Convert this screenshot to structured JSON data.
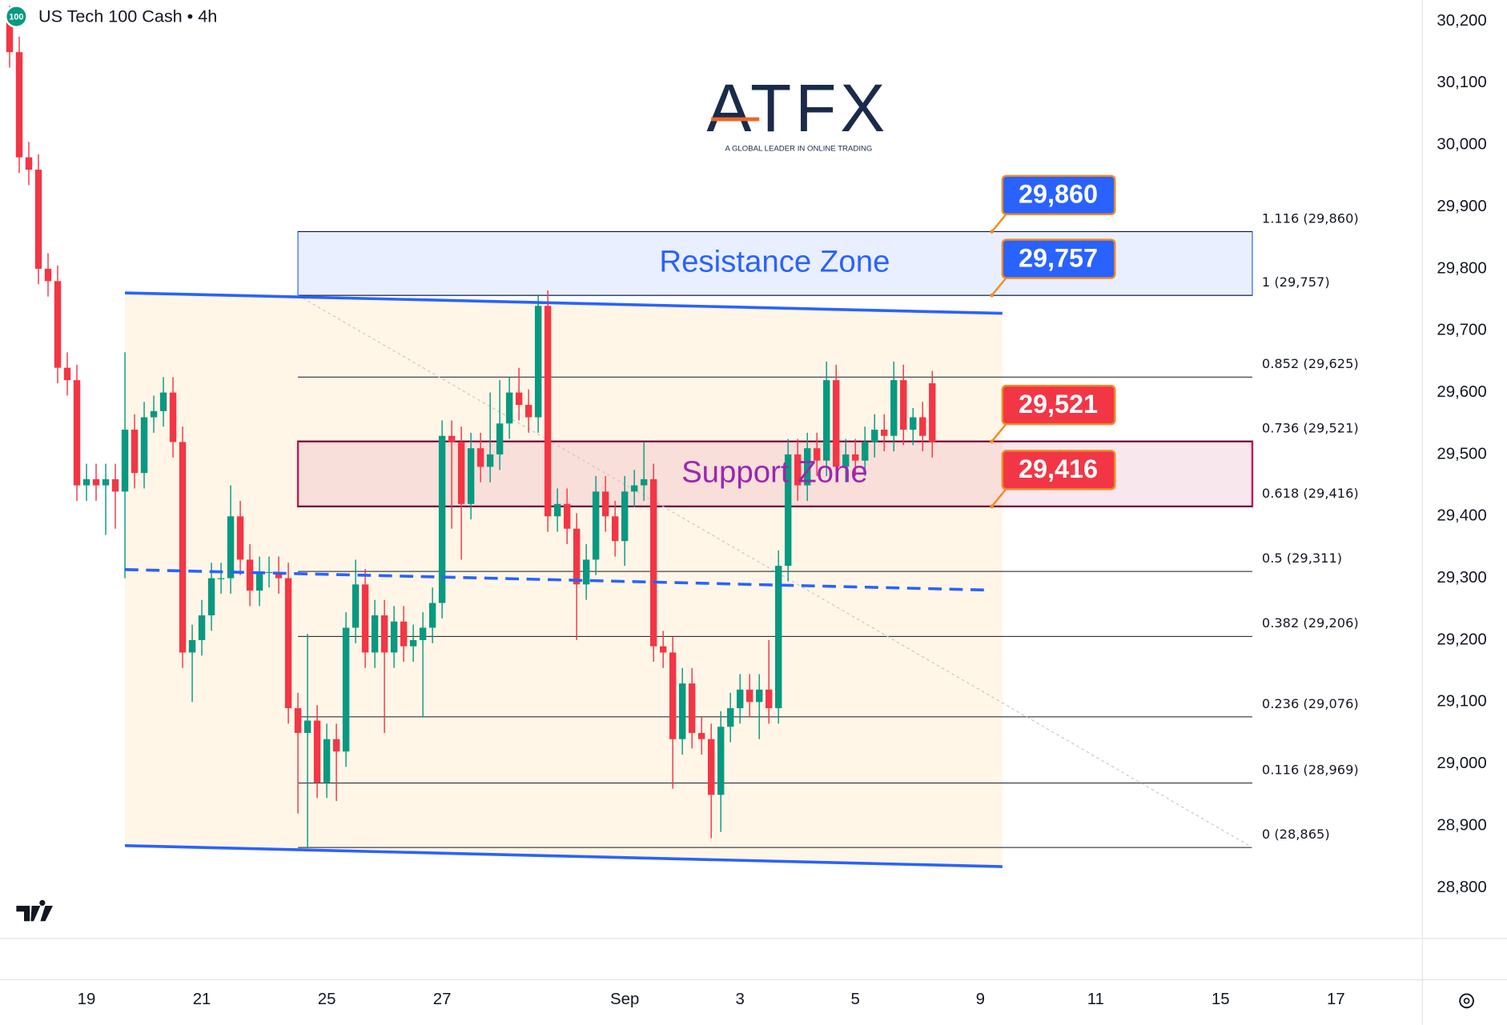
{
  "chart_data": {
    "type": "candlestick",
    "title": "US Tech 100 Cash • 4h",
    "badge": "100",
    "logo": "ATFX",
    "tagline": "A GLOBAL LEADER IN ONLINE TRADING",
    "up_color": "#089981",
    "down_color": "#f23645",
    "open": [
      30200,
      30150,
      29980,
      29960,
      29800,
      29780,
      29640,
      29620,
      29450,
      29460,
      29450,
      29460,
      29440,
      29540,
      29470,
      29560,
      29570,
      29600,
      29520,
      29180,
      29200,
      29240,
      29300,
      29300,
      29400,
      29330,
      29280,
      29310,
      29310,
      29300,
      29090,
      29050,
      29070,
      28970,
      29040,
      29020,
      29220,
      29290,
      29180,
      29240,
      29180,
      29230,
      29190,
      29200,
      29220,
      29260,
      29530,
      29520,
      29420,
      29510,
      29480,
      29500,
      29550,
      29600,
      29580,
      29560,
      29740,
      29400,
      29420,
      29380,
      29290,
      29330,
      29440,
      29400,
      29360,
      29440,
      29450,
      29460,
      29190,
      29180,
      29040,
      29130,
      29050,
      29040,
      28950,
      29060,
      29090,
      29120,
      29100,
      29120,
      29090,
      29320,
      29500,
      29450,
      29510,
      29490,
      29620,
      29480,
      29500,
      29490,
      29520,
      29540,
      29530,
      29620,
      29540,
      29560,
      29615
    ],
    "high": [
      30225,
      30175,
      30005,
      29985,
      29825,
      29805,
      29665,
      29645,
      29485,
      29485,
      29485,
      29485,
      29665,
      29565,
      29585,
      29595,
      29625,
      29625,
      29545,
      29225,
      29265,
      29325,
      29325,
      29450,
      29425,
      29355,
      29335,
      29335,
      29335,
      29325,
      29115,
      29210,
      29095,
      29065,
      29065,
      29245,
      29330,
      29315,
      29265,
      29265,
      29255,
      29255,
      29225,
      29245,
      29285,
      29555,
      29555,
      29545,
      29535,
      29535,
      29600,
      29620,
      29625,
      29640,
      29605,
      29757,
      29765,
      29445,
      29445,
      29405,
      29355,
      29465,
      29465,
      29425,
      29465,
      29475,
      29520,
      29485,
      29215,
      29205,
      29155,
      29155,
      29075,
      29065,
      29085,
      29115,
      29145,
      29145,
      29145,
      29200,
      29345,
      29525,
      29525,
      29535,
      29535,
      29650,
      29645,
      29525,
      29525,
      29545,
      29565,
      29565,
      29650,
      29645,
      29575,
      29585,
      29635
    ],
    "low": [
      30125,
      29955,
      29935,
      29775,
      29755,
      29615,
      29595,
      29425,
      29425,
      29425,
      29370,
      29380,
      29300,
      29445,
      29445,
      29535,
      29545,
      29495,
      29155,
      29100,
      29175,
      29215,
      29275,
      29275,
      29305,
      29255,
      29255,
      29285,
      29275,
      29065,
      28920,
      28865,
      28945,
      28945,
      28940,
      28995,
      29195,
      29155,
      29155,
      29050,
      29155,
      29165,
      29165,
      29075,
      29195,
      29235,
      29380,
      29330,
      29395,
      29455,
      29455,
      29475,
      29525,
      29555,
      29535,
      29535,
      29375,
      29375,
      29355,
      29200,
      29265,
      29305,
      29375,
      29335,
      29320,
      29415,
      29425,
      29165,
      29155,
      28960,
      29015,
      29025,
      29015,
      28880,
      28890,
      29035,
      29065,
      29075,
      29040,
      29065,
      29065,
      29295,
      29425,
      29425,
      29465,
      29465,
      29455,
      29455,
      29465,
      29465,
      29495,
      29505,
      29505,
      29515,
      29515,
      29505,
      29495
    ],
    "close": [
      30150,
      29980,
      29960,
      29800,
      29780,
      29640,
      29620,
      29450,
      29460,
      29450,
      29460,
      29440,
      29540,
      29470,
      29560,
      29570,
      29600,
      29520,
      29180,
      29200,
      29240,
      29300,
      29300,
      29400,
      29330,
      29280,
      29310,
      29310,
      29300,
      29090,
      29050,
      29070,
      28970,
      29040,
      29020,
      29220,
      29290,
      29180,
      29240,
      29180,
      29230,
      29190,
      29200,
      29220,
      29260,
      29530,
      29520,
      29420,
      29510,
      29480,
      29500,
      29550,
      29600,
      29580,
      29560,
      29740,
      29400,
      29420,
      29380,
      29290,
      29330,
      29440,
      29400,
      29360,
      29440,
      29450,
      29460,
      29190,
      29180,
      29040,
      29130,
      29050,
      29040,
      28950,
      29060,
      29090,
      29120,
      29100,
      29120,
      29090,
      29320,
      29500,
      29450,
      29510,
      29490,
      29620,
      29480,
      29500,
      29490,
      29520,
      29540,
      29530,
      29620,
      29540,
      29560,
      29530,
      29520
    ],
    "xlim": [
      -1,
      147
    ],
    "xticks": [
      {
        "value": 8,
        "label": "19"
      },
      {
        "value": 20,
        "label": "21"
      },
      {
        "value": 33,
        "label": "25"
      },
      {
        "value": 45,
        "label": "27"
      },
      {
        "value": 64,
        "label": "Sep"
      },
      {
        "value": 76,
        "label": "3"
      },
      {
        "value": 88,
        "label": "5"
      },
      {
        "value": 101,
        "label": "9"
      },
      {
        "value": 113,
        "label": "11"
      },
      {
        "value": 126,
        "label": "15"
      },
      {
        "value": 138,
        "label": "17"
      }
    ],
    "ylim": [
      28718,
      30234
    ],
    "yticks": [
      {
        "value": 28800,
        "label": "28,800"
      },
      {
        "value": 28900,
        "label": "28,900"
      },
      {
        "value": 29000,
        "label": "29,000"
      },
      {
        "value": 29100,
        "label": "29,100"
      },
      {
        "value": 29200,
        "label": "29,200"
      },
      {
        "value": 29300,
        "label": "29,300"
      },
      {
        "value": 29400,
        "label": "29,400"
      },
      {
        "value": 29500,
        "label": "29,500"
      },
      {
        "value": 29600,
        "label": "29,600"
      },
      {
        "value": 29700,
        "label": "29,700"
      },
      {
        "value": 29800,
        "label": "29,800"
      },
      {
        "value": 29900,
        "label": "29,900"
      },
      {
        "value": 30000,
        "label": "30,000"
      },
      {
        "value": 30100,
        "label": "30,100"
      },
      {
        "value": 30200,
        "label": "30,200"
      }
    ],
    "grid": true,
    "fib_levels": [
      {
        "value": 29860,
        "label": "1.116 (29,860)"
      },
      {
        "value": 29757,
        "label": "1 (29,757)"
      },
      {
        "value": 29625,
        "label": "0.852 (29,625)"
      },
      {
        "value": 29521,
        "label": "0.736 (29,521)"
      },
      {
        "value": 29416,
        "label": "0.618 (29,416)"
      },
      {
        "value": 29311,
        "label": "0.5 (29,311)"
      },
      {
        "value": 29206,
        "label": "0.382 (29,206)"
      },
      {
        "value": 29076,
        "label": "0.236 (29,076)"
      },
      {
        "value": 28969,
        "label": "0.116 (28,969)"
      },
      {
        "value": 28865,
        "label": "0 (28,865)"
      }
    ],
    "zones": [
      {
        "label": "Resistance Zone",
        "from": 29757,
        "to": 29860,
        "color": "#2962ff"
      },
      {
        "label": "Support Zone",
        "from": 29416,
        "to": 29521,
        "color": "#c2185b"
      }
    ],
    "callouts": [
      {
        "value": 29860,
        "label": "29,860",
        "color": "#2962ff"
      },
      {
        "value": 29757,
        "label": "29,757",
        "color": "#2962ff"
      },
      {
        "value": 29521,
        "label": "29,521",
        "color": "#f23645"
      },
      {
        "value": 29416,
        "label": "29,416",
        "color": "#f23645"
      }
    ],
    "channel": {
      "upper": [
        29761,
        29728
      ],
      "lower": [
        28868,
        28834
      ],
      "middle": [
        29314,
        29281
      ],
      "color": "#2962ff"
    }
  }
}
